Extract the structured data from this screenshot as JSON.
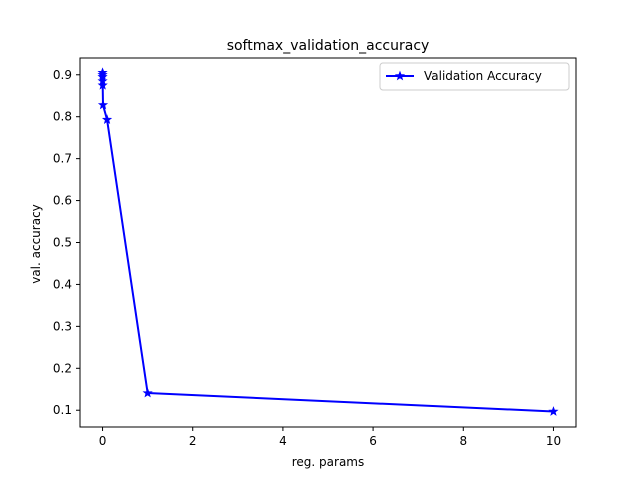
{
  "chart_data": {
    "type": "line",
    "title": "softmax_validation_accuracy",
    "xlabel": "reg. params",
    "ylabel": "val. accuracy",
    "xlim": [
      -0.5,
      10.5
    ],
    "ylim": [
      0.06,
      0.94
    ],
    "xticks": [
      "0",
      "2",
      "4",
      "6",
      "8",
      "10"
    ],
    "xtick_values": [
      0,
      2,
      4,
      6,
      8,
      10
    ],
    "yticks": [
      "0.1",
      "0.2",
      "0.3",
      "0.4",
      "0.5",
      "0.6",
      "0.7",
      "0.8",
      "0.9"
    ],
    "ytick_values": [
      0.1,
      0.2,
      0.3,
      0.4,
      0.5,
      0.6,
      0.7,
      0.8,
      0.9
    ],
    "grid": false,
    "legend_position": "upper right",
    "series": [
      {
        "name": "Validation Accuracy",
        "color": "#0000ff",
        "marker": "star",
        "x": [
          0.0,
          0.0001,
          0.0003,
          0.001,
          0.003,
          0.01,
          0.1,
          1,
          10
        ],
        "y": [
          0.895,
          0.905,
          0.9,
          0.885,
          0.875,
          0.828,
          0.793,
          0.141,
          0.097
        ]
      }
    ]
  }
}
